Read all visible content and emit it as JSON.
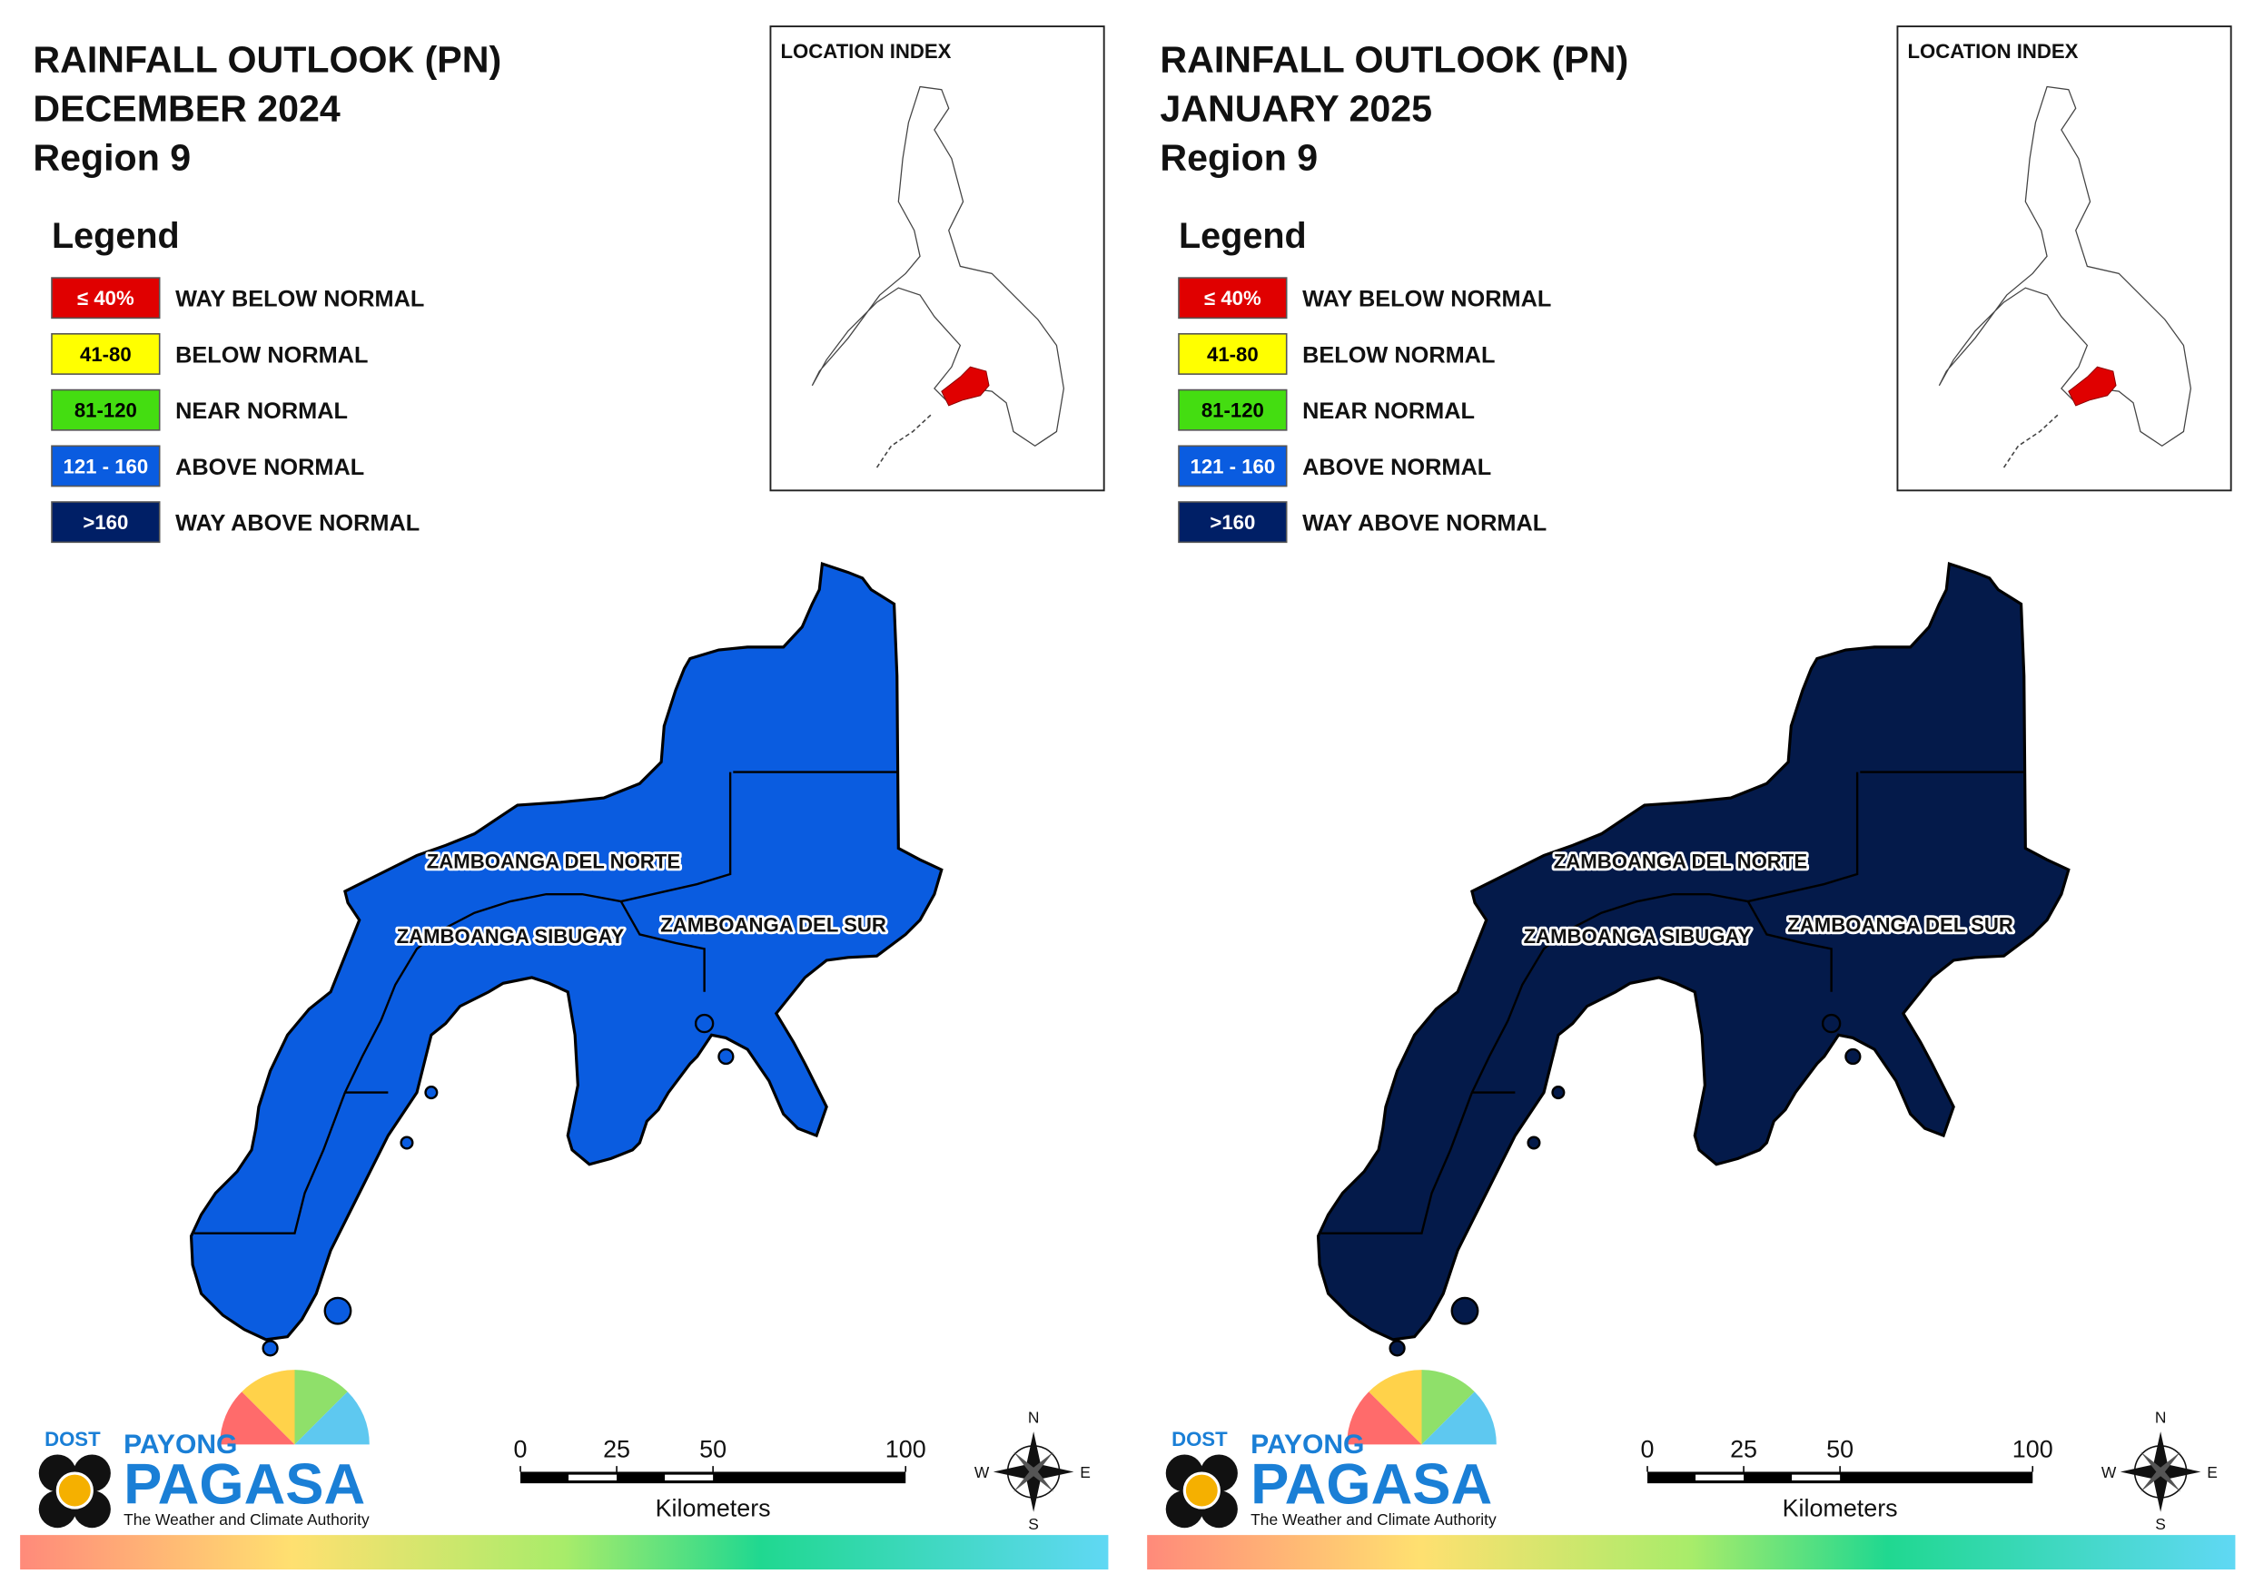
{
  "panels": [
    {
      "title": [
        "RAINFALL OUTLOOK (PN)",
        "DECEMBER 2024",
        "Region 9"
      ],
      "legend_title": "Legend",
      "legend": [
        {
          "swatch": "≤ 40%",
          "label": "WAY BELOW NORMAL",
          "color": "#e00000"
        },
        {
          "swatch": "41-80",
          "label": "BELOW NORMAL",
          "color": "#ffff00"
        },
        {
          "swatch": "81-120",
          "label": "NEAR NORMAL",
          "color": "#44dd11"
        },
        {
          "swatch": "121 - 160",
          "label": "ABOVE NORMAL",
          "color": "#0a5ce0"
        },
        {
          "swatch": ">160",
          "label": "WAY ABOVE NORMAL",
          "color": "#001f66"
        }
      ],
      "location_index": "LOCATION INDEX",
      "map_color": "#0a5ce0",
      "provinces": [
        "ZAMBOANGA DEL NORTE",
        "ZAMBOANGA SIBUGAY",
        "ZAMBOANGA DEL SUR"
      ],
      "scale": {
        "ticks": [
          0,
          25,
          50,
          100
        ],
        "unit": "Kilometers"
      },
      "compass": [
        "N",
        "E",
        "S",
        "W"
      ],
      "logo": {
        "agency": "DOST",
        "brand_top": "PAYONG",
        "brand": "PAGASA",
        "tagline": "The Weather and Climate Authority"
      }
    },
    {
      "title": [
        "RAINFALL OUTLOOK (PN)",
        "JANUARY 2025",
        "Region 9"
      ],
      "legend_title": "Legend",
      "legend": [
        {
          "swatch": "≤ 40%",
          "label": "WAY BELOW NORMAL",
          "color": "#e00000"
        },
        {
          "swatch": "41-80",
          "label": "BELOW NORMAL",
          "color": "#ffff00"
        },
        {
          "swatch": "81-120",
          "label": "NEAR NORMAL",
          "color": "#44dd11"
        },
        {
          "swatch": "121 - 160",
          "label": "ABOVE NORMAL",
          "color": "#0a5ce0"
        },
        {
          "swatch": ">160",
          "label": "WAY ABOVE NORMAL",
          "color": "#001f66"
        }
      ],
      "location_index": "LOCATION INDEX",
      "map_color": "#041a4a",
      "provinces": [
        "ZAMBOANGA DEL NORTE",
        "ZAMBOANGA SIBUGAY",
        "ZAMBOANGA DEL SUR"
      ],
      "scale": {
        "ticks": [
          0,
          25,
          50,
          100
        ],
        "unit": "Kilometers"
      },
      "compass": [
        "N",
        "E",
        "S",
        "W"
      ],
      "logo": {
        "agency": "DOST",
        "brand_top": "PAYONG",
        "brand": "PAGASA",
        "tagline": "The Weather and Climate Authority"
      }
    }
  ]
}
